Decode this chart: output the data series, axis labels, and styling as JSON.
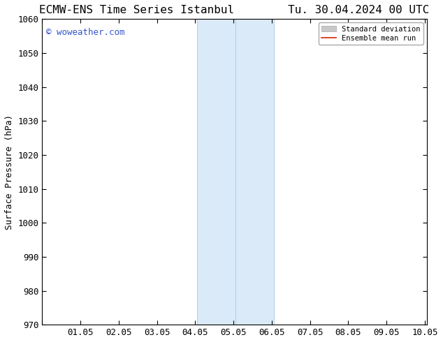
{
  "title_left": "ECMW-ENS Time Series Istanbul",
  "title_right": "Tu. 30.04.2024 00 UTC",
  "ylabel": "Surface Pressure (hPa)",
  "xlabel": "",
  "xlim": [
    0.0,
    10.05
  ],
  "ylim": [
    970,
    1060
  ],
  "yticks": [
    970,
    980,
    990,
    1000,
    1010,
    1020,
    1030,
    1040,
    1050,
    1060
  ],
  "xtick_labels": [
    "",
    "01.05",
    "02.05",
    "03.05",
    "04.05",
    "05.05",
    "06.05",
    "07.05",
    "08.05",
    "09.05",
    "10.05"
  ],
  "xtick_positions": [
    0.0,
    1.0,
    2.0,
    3.0,
    4.0,
    5.0,
    6.0,
    7.0,
    8.0,
    9.0,
    10.0
  ],
  "shaded_region_start": 4.05,
  "shaded_region_end": 6.05,
  "shaded_color": "#daeaf8",
  "shaded_edge_color": "#b0cfe8",
  "bg_color": "#ffffff",
  "watermark_text": "© woweather.com",
  "watermark_color": "#3355cc",
  "legend_std_label": "Standard deviation",
  "legend_mean_label": "Ensemble mean run",
  "legend_std_color": "#c8c8c8",
  "legend_mean_color": "#dd2200",
  "title_fontsize": 11.5,
  "ylabel_fontsize": 9,
  "tick_fontsize": 9,
  "watermark_fontsize": 9
}
